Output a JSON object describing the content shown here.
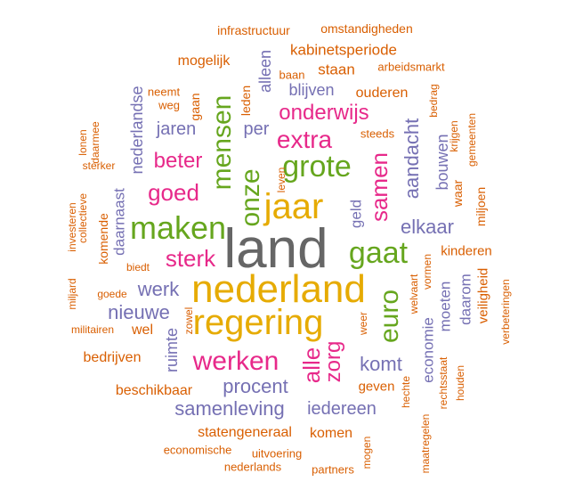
{
  "colors": {
    "orange": "#D95F02",
    "purple": "#7570B3",
    "magenta": "#E7298A",
    "green": "#66A61E",
    "gold": "#E6AB02",
    "gray": "#666666"
  },
  "words": [
    {
      "text": "land",
      "color": "gray"
    },
    {
      "text": "nederland",
      "color": "gold"
    },
    {
      "text": "regering",
      "color": "gold"
    },
    {
      "text": "jaar",
      "color": "gold"
    },
    {
      "text": "maken",
      "color": "green"
    },
    {
      "text": "grote",
      "color": "green"
    },
    {
      "text": "mensen",
      "color": "green"
    },
    {
      "text": "onze",
      "color": "green"
    },
    {
      "text": "gaat",
      "color": "green"
    },
    {
      "text": "euro",
      "color": "green"
    },
    {
      "text": "werken",
      "color": "magenta"
    },
    {
      "text": "sterk",
      "color": "magenta"
    },
    {
      "text": "extra",
      "color": "magenta"
    },
    {
      "text": "goed",
      "color": "magenta"
    },
    {
      "text": "beter",
      "color": "magenta"
    },
    {
      "text": "onderwijs",
      "color": "magenta"
    },
    {
      "text": "samen",
      "color": "magenta"
    },
    {
      "text": "alle",
      "color": "magenta"
    },
    {
      "text": "zorg",
      "color": "magenta"
    },
    {
      "text": "aandacht",
      "color": "purple"
    },
    {
      "text": "elkaar",
      "color": "purple"
    },
    {
      "text": "procent",
      "color": "purple"
    },
    {
      "text": "samenleving",
      "color": "purple"
    },
    {
      "text": "nieuwe",
      "color": "purple"
    },
    {
      "text": "werk",
      "color": "purple"
    },
    {
      "text": "komt",
      "color": "purple"
    },
    {
      "text": "iedereen",
      "color": "purple"
    },
    {
      "text": "per",
      "color": "purple"
    },
    {
      "text": "jaren",
      "color": "purple"
    },
    {
      "text": "blijven",
      "color": "purple"
    },
    {
      "text": "bouwen",
      "color": "purple"
    },
    {
      "text": "alleen",
      "color": "purple"
    },
    {
      "text": "nederlandse",
      "color": "purple"
    },
    {
      "text": "ruimte",
      "color": "purple"
    },
    {
      "text": "economie",
      "color": "purple"
    },
    {
      "text": "moeten",
      "color": "purple"
    },
    {
      "text": "daarom",
      "color": "purple"
    },
    {
      "text": "geld",
      "color": "purple"
    },
    {
      "text": "daarnaast",
      "color": "purple"
    },
    {
      "text": "kabinetsperiode",
      "color": "orange"
    },
    {
      "text": "mogelijk",
      "color": "orange"
    },
    {
      "text": "staan",
      "color": "orange"
    },
    {
      "text": "ouderen",
      "color": "orange"
    },
    {
      "text": "bedrijven",
      "color": "orange"
    },
    {
      "text": "beschikbaar",
      "color": "orange"
    },
    {
      "text": "statengeneraal",
      "color": "orange"
    },
    {
      "text": "komen",
      "color": "orange"
    },
    {
      "text": "geven",
      "color": "orange"
    },
    {
      "text": "kinderen",
      "color": "orange"
    },
    {
      "text": "veiligheid",
      "color": "orange"
    },
    {
      "text": "miljoen",
      "color": "orange"
    },
    {
      "text": "waar",
      "color": "orange"
    },
    {
      "text": "wel",
      "color": "orange"
    },
    {
      "text": "gaan",
      "color": "orange"
    },
    {
      "text": "leden",
      "color": "orange"
    },
    {
      "text": "komende",
      "color": "orange"
    },
    {
      "text": "infrastructuur",
      "color": "orange"
    },
    {
      "text": "omstandigheden",
      "color": "orange"
    },
    {
      "text": "arbeidsmarkt",
      "color": "orange"
    },
    {
      "text": "baan",
      "color": "orange"
    },
    {
      "text": "neemt",
      "color": "orange"
    },
    {
      "text": "weg",
      "color": "orange"
    },
    {
      "text": "steeds",
      "color": "orange"
    },
    {
      "text": "bedrag",
      "color": "orange"
    },
    {
      "text": "krijgen",
      "color": "orange"
    },
    {
      "text": "gemeenten",
      "color": "orange"
    },
    {
      "text": "lonen",
      "color": "orange"
    },
    {
      "text": "daarmee",
      "color": "orange"
    },
    {
      "text": "sterker",
      "color": "orange"
    },
    {
      "text": "collectieve",
      "color": "orange"
    },
    {
      "text": "investeren",
      "color": "orange"
    },
    {
      "text": "miljard",
      "color": "orange"
    },
    {
      "text": "biedt",
      "color": "orange"
    },
    {
      "text": "goede",
      "color": "orange"
    },
    {
      "text": "militairen",
      "color": "orange"
    },
    {
      "text": "zowel",
      "color": "orange"
    },
    {
      "text": "leven",
      "color": "orange"
    },
    {
      "text": "weer",
      "color": "orange"
    },
    {
      "text": "welvaart",
      "color": "orange"
    },
    {
      "text": "vormen",
      "color": "orange"
    },
    {
      "text": "rechtsstaat",
      "color": "orange"
    },
    {
      "text": "houden",
      "color": "orange"
    },
    {
      "text": "verbeteringen",
      "color": "orange"
    },
    {
      "text": "hechte",
      "color": "orange"
    },
    {
      "text": "maatregelen",
      "color": "orange"
    },
    {
      "text": "economische",
      "color": "orange"
    },
    {
      "text": "uitvoering",
      "color": "orange"
    },
    {
      "text": "nederlands",
      "color": "orange"
    },
    {
      "text": "partners",
      "color": "orange"
    },
    {
      "text": "mogen",
      "color": "orange"
    }
  ]
}
